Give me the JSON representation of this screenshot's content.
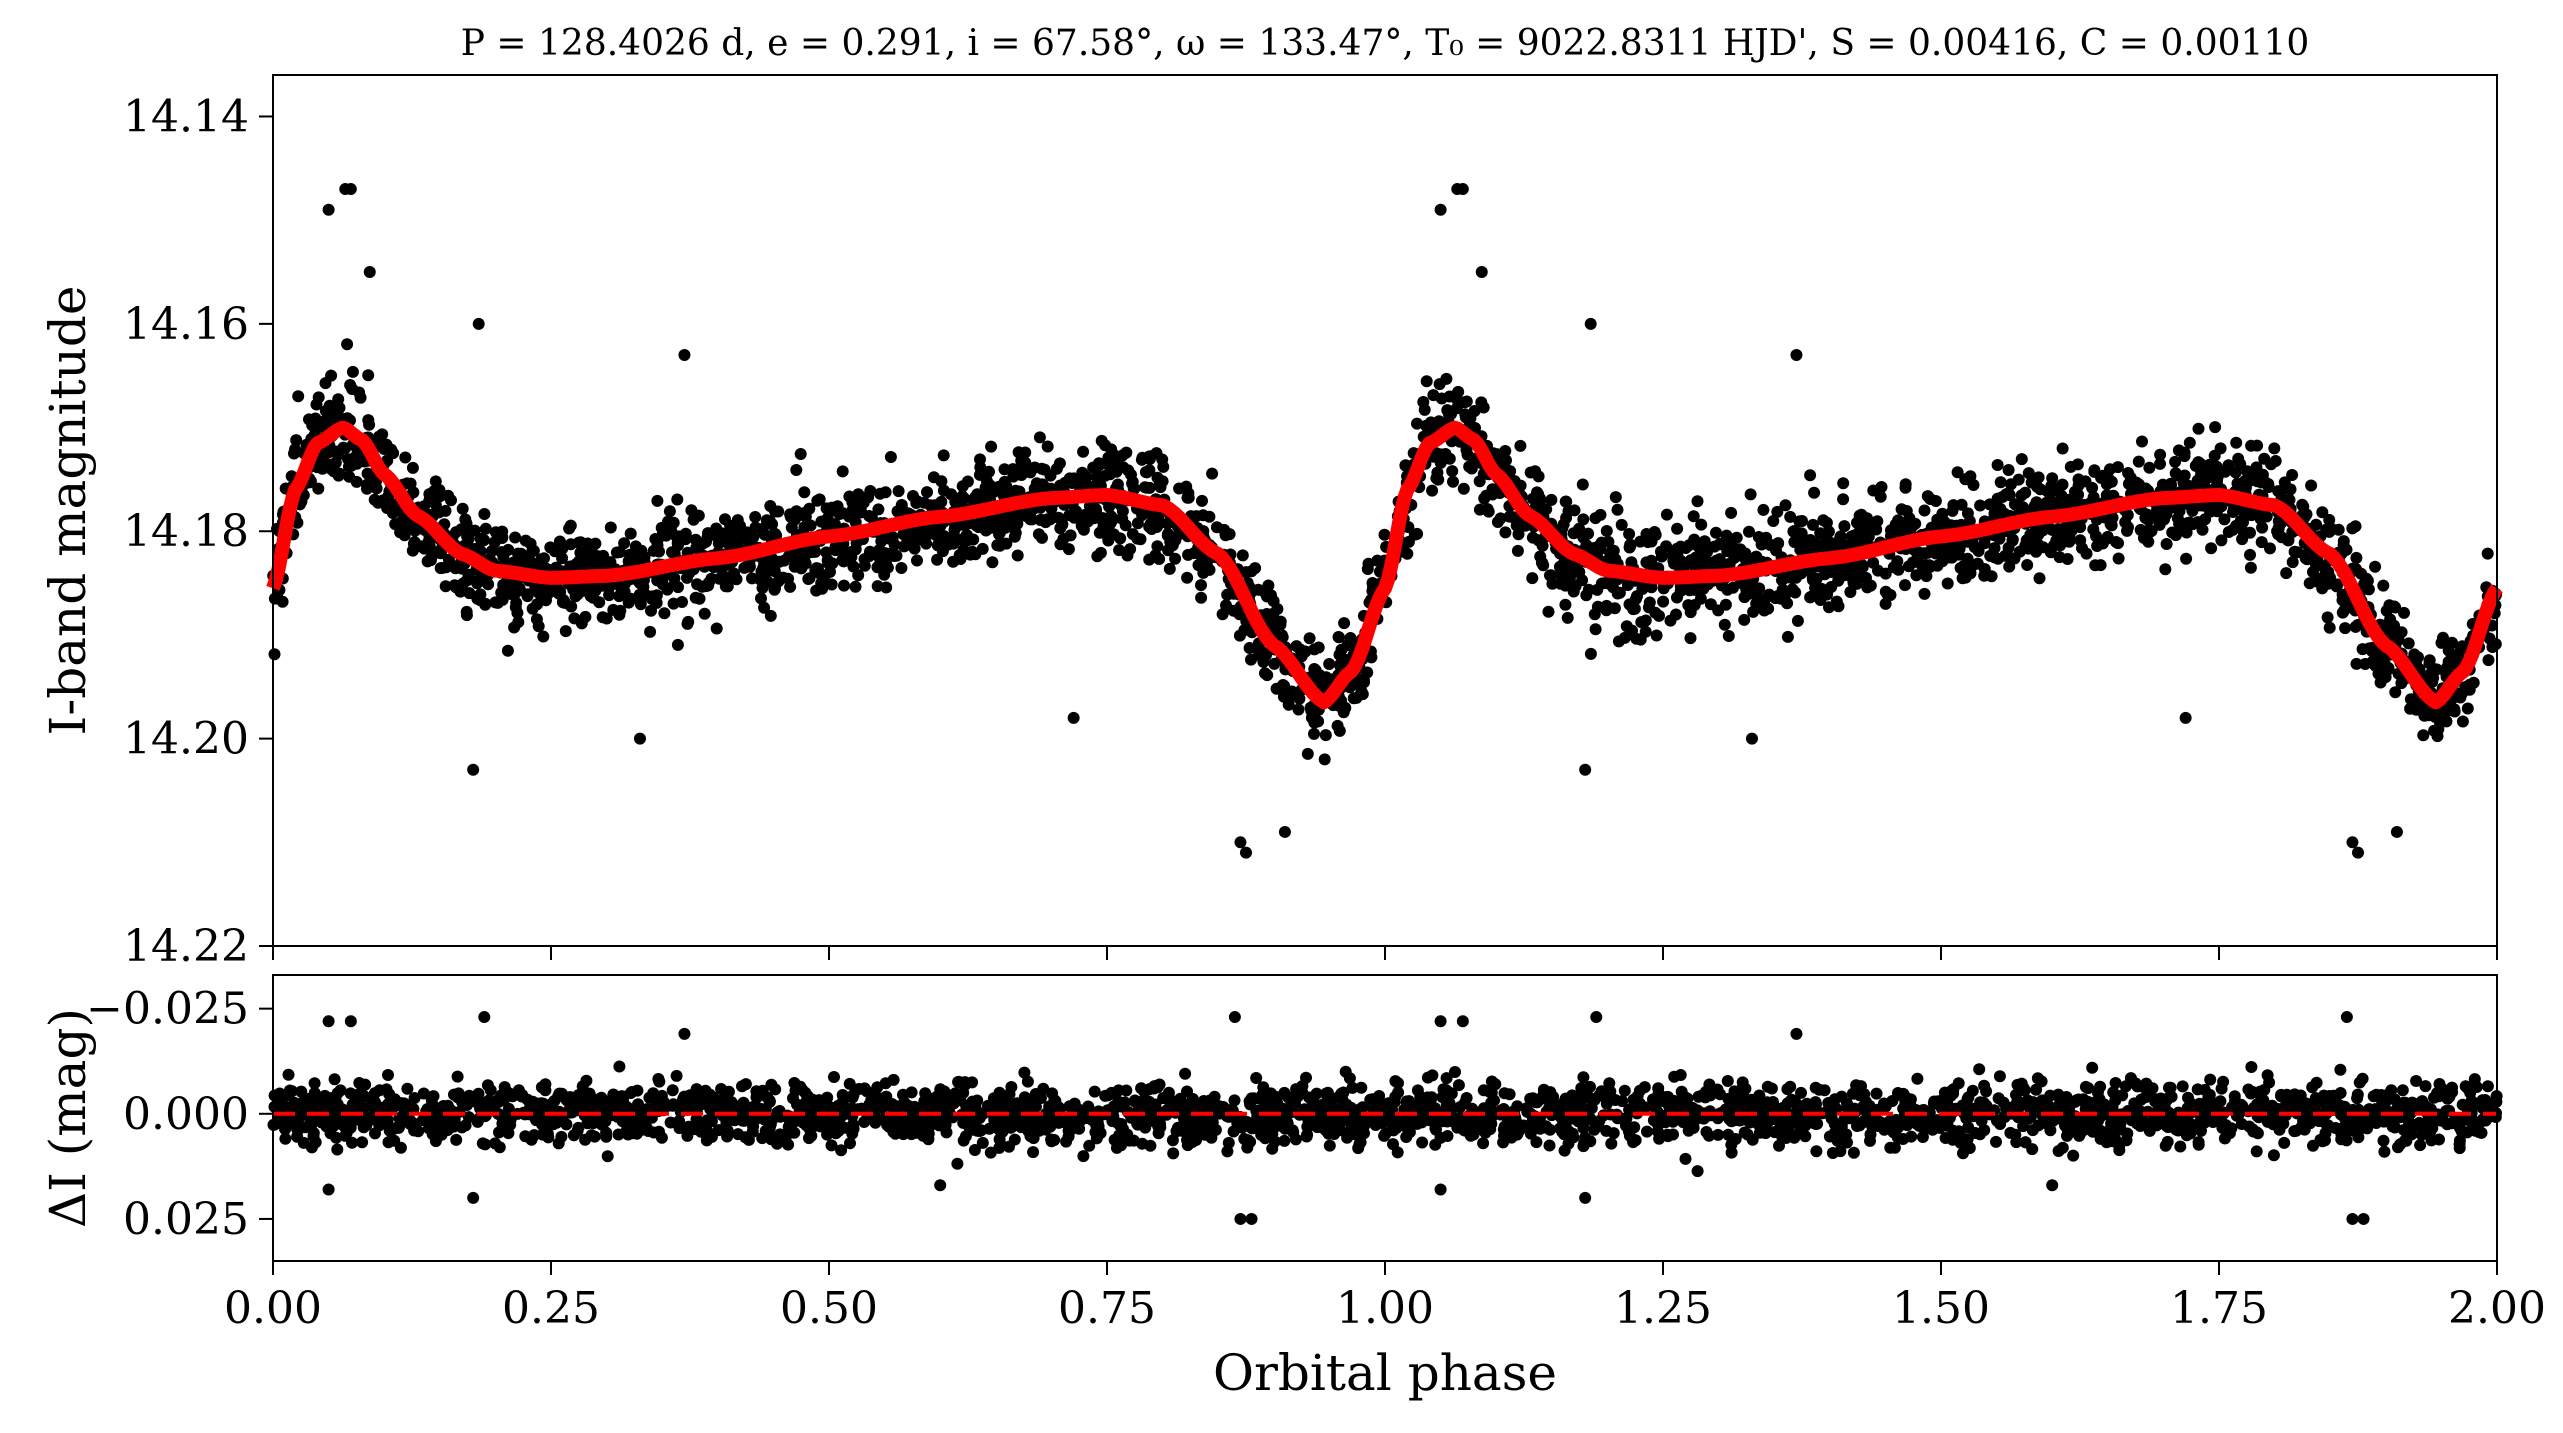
{
  "chart_data": [
    {
      "panel": "top",
      "type": "scatter",
      "title": "P = 128.4026 d, e = 0.291, i = 67.58°, ω = 133.47°, T₀ = 9022.8311 HJD', S = 0.00416, C = 0.00110",
      "xlabel": "",
      "ylabel": "I-band magnitude",
      "xlim": [
        0.0,
        2.0
      ],
      "ylim": [
        14.22,
        14.136
      ],
      "y_inverted": true,
      "y_ticks": [
        "14.14",
        "14.16",
        "14.18",
        "14.20",
        "14.22"
      ],
      "y_tick_values": [
        14.14,
        14.16,
        14.18,
        14.2,
        14.22
      ],
      "x_ticks": [
        0.0,
        0.25,
        0.5,
        0.75,
        1.0,
        1.25,
        1.5,
        1.75,
        2.0
      ],
      "series": [
        {
          "type": "scatter",
          "color": "#000000",
          "x": [
            0.0,
            0.02,
            0.04,
            0.063,
            0.08,
            0.1,
            0.13,
            0.17,
            0.2,
            0.25,
            0.3,
            0.4,
            0.5,
            0.6,
            0.7,
            0.75,
            0.8,
            0.85,
            0.9,
            0.945,
            0.97,
            1.0
          ],
          "y": [
            14.1855,
            14.176,
            14.1715,
            14.17,
            14.1712,
            14.1745,
            14.1785,
            14.1822,
            14.1838,
            14.1845,
            14.1843,
            14.1826,
            14.1805,
            14.1786,
            14.1768,
            14.1765,
            14.1775,
            14.1822,
            14.191,
            14.1965,
            14.1935,
            14.1855
          ],
          "scatter_sigma_mag": 0.0045,
          "outliers": [
            {
              "x": 0.05,
              "y": 14.149
            },
            {
              "x": 0.065,
              "y": 14.147
            },
            {
              "x": 0.07,
              "y": 14.147
            },
            {
              "x": 0.087,
              "y": 14.155
            },
            {
              "x": 0.18,
              "y": 14.203
            },
            {
              "x": 0.185,
              "y": 14.16
            },
            {
              "x": 0.37,
              "y": 14.163
            },
            {
              "x": 0.87,
              "y": 14.21
            },
            {
              "x": 0.875,
              "y": 14.211
            },
            {
              "x": 0.91,
              "y": 14.209
            },
            {
              "x": 0.72,
              "y": 14.198
            },
            {
              "x": 0.33,
              "y": 14.2
            }
          ]
        },
        {
          "type": "line",
          "name": "",
          "color": "#ff0000",
          "x": [
            0.0,
            0.02,
            0.04,
            0.063,
            0.08,
            0.1,
            0.13,
            0.17,
            0.2,
            0.25,
            0.3,
            0.4,
            0.5,
            0.6,
            0.7,
            0.75,
            0.8,
            0.85,
            0.9,
            0.945,
            0.97,
            1.0
          ],
          "y": [
            14.1855,
            14.176,
            14.1715,
            14.17,
            14.1712,
            14.1745,
            14.1785,
            14.1822,
            14.1838,
            14.1845,
            14.1843,
            14.1826,
            14.1805,
            14.1786,
            14.1768,
            14.1765,
            14.1775,
            14.1822,
            14.191,
            14.1965,
            14.1935,
            14.1855
          ],
          "repeat_period": 1.0
        }
      ]
    },
    {
      "panel": "bottom",
      "type": "scatter",
      "xlabel": "Orbital phase",
      "ylabel": "ΔI (mag)",
      "xlim": [
        0.0,
        2.0
      ],
      "ylim": [
        0.035,
        -0.033
      ],
      "y_inverted": true,
      "y_ticks": [
        "−0.025",
        "0.000",
        "0.025"
      ],
      "y_tick_values": [
        -0.025,
        0.0,
        0.025
      ],
      "x_ticks": [
        "0.00",
        "0.25",
        "0.50",
        "0.75",
        "1.00",
        "1.25",
        "1.50",
        "1.75",
        "2.00"
      ],
      "x_tick_values": [
        0.0,
        0.25,
        0.5,
        0.75,
        1.0,
        1.25,
        1.5,
        1.75,
        2.0
      ],
      "series": [
        {
          "type": "scatter",
          "color": "#000000",
          "residual_sigma_mag": 0.0045,
          "outliers": [
            {
              "x": 0.05,
              "y": -0.022
            },
            {
              "x": 0.07,
              "y": -0.022
            },
            {
              "x": 0.19,
              "y": -0.023
            },
            {
              "x": 0.18,
              "y": 0.02
            },
            {
              "x": 0.37,
              "y": -0.019
            },
            {
              "x": 0.865,
              "y": -0.023
            },
            {
              "x": 0.87,
              "y": 0.025
            },
            {
              "x": 0.88,
              "y": 0.025
            },
            {
              "x": 0.05,
              "y": 0.018
            },
            {
              "x": 0.6,
              "y": 0.017
            }
          ]
        },
        {
          "type": "line",
          "style": "dashed",
          "color": "#ff0000",
          "y": 0.0
        }
      ]
    }
  ]
}
